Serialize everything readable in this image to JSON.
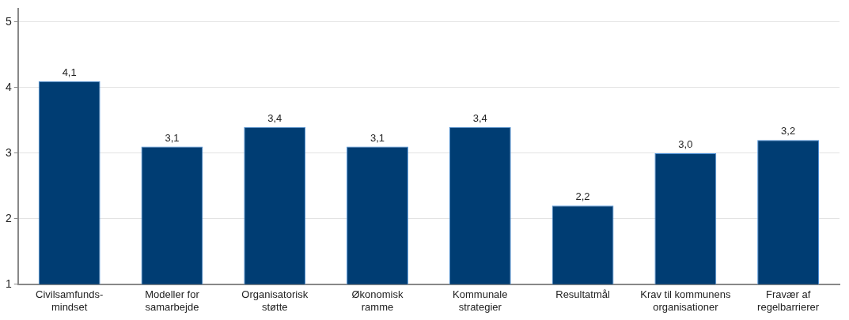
{
  "chart_data": {
    "type": "bar",
    "categories": [
      "Civilsamfunds-\nmindset",
      "Modeller for\nsamarbejde",
      "Organisatorisk\nstøtte",
      "Økonomisk\nramme",
      "Kommunale\nstrategier",
      "Resultatmål",
      "Krav til kommunens\norganisationer",
      "Fravær af\nregelbarrierer"
    ],
    "values": [
      4.1,
      3.1,
      3.4,
      3.1,
      3.4,
      2.2,
      3.0,
      3.2
    ],
    "value_labels": [
      "4,1",
      "3,1",
      "3,4",
      "3,1",
      "3,4",
      "2,2",
      "3,0",
      "3,2"
    ],
    "color": "#003d73",
    "ylim": [
      1,
      5.2
    ],
    "yticks": [
      1,
      2,
      3,
      4,
      5
    ],
    "grid": "y",
    "legend": false
  }
}
